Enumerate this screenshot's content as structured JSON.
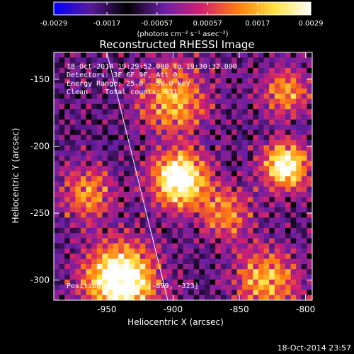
{
  "chart_data": {
    "type": "heatmap",
    "title": "Reconstructed RHESSI Image",
    "xlabel": "Heliocentric X (arcsec)",
    "ylabel": "Heliocentric Y (arcsec)",
    "xlim": [
      -990,
      -795
    ],
    "ylim": [
      -315,
      -130
    ],
    "x_ticks": [
      "-950",
      "-900",
      "-850",
      "-800"
    ],
    "x_tick_values": [
      -950,
      -900,
      -850,
      -800
    ],
    "y_ticks": [
      "-150",
      "-200",
      "-250",
      "-300"
    ],
    "y_tick_values": [
      -150,
      -200,
      -250,
      -300
    ],
    "colorbar": {
      "ticks": [
        "-0.0029",
        "-0.0017",
        "-0.00057",
        "0.00057",
        "0.0017",
        "0.0029"
      ],
      "tick_values": [
        -0.0029,
        -0.0017,
        -0.00057,
        0.00057,
        0.0017,
        0.0029
      ],
      "range": [
        -0.0029,
        0.0029
      ],
      "units_label": "(photons cm⁻² s⁻¹ asec⁻²)",
      "colormap": [
        "#0000ff",
        "#5a1a9a",
        "#000000",
        "#6a1fa5",
        "#d02070",
        "#ff7a10",
        "#ffe040",
        "#ffffff"
      ]
    },
    "annotations": [
      "18-Oct-2014 19:29:52.000 to 19:30:32.000",
      "Detectors: 3F 6F 9F, Att 0",
      "Energy Range: 25.0 - 50.0 keV",
      "Clean    Total counts: 931.",
      "Position of Peak = [-899, -323]"
    ],
    "limb_line": {
      "x": [
        -950,
        -904
      ],
      "y": [
        -130,
        -315
      ]
    },
    "peak": [
      -899,
      -323
    ],
    "grid": false
  },
  "footer": {
    "timestamp": "18-Oct-2014 23:57"
  }
}
